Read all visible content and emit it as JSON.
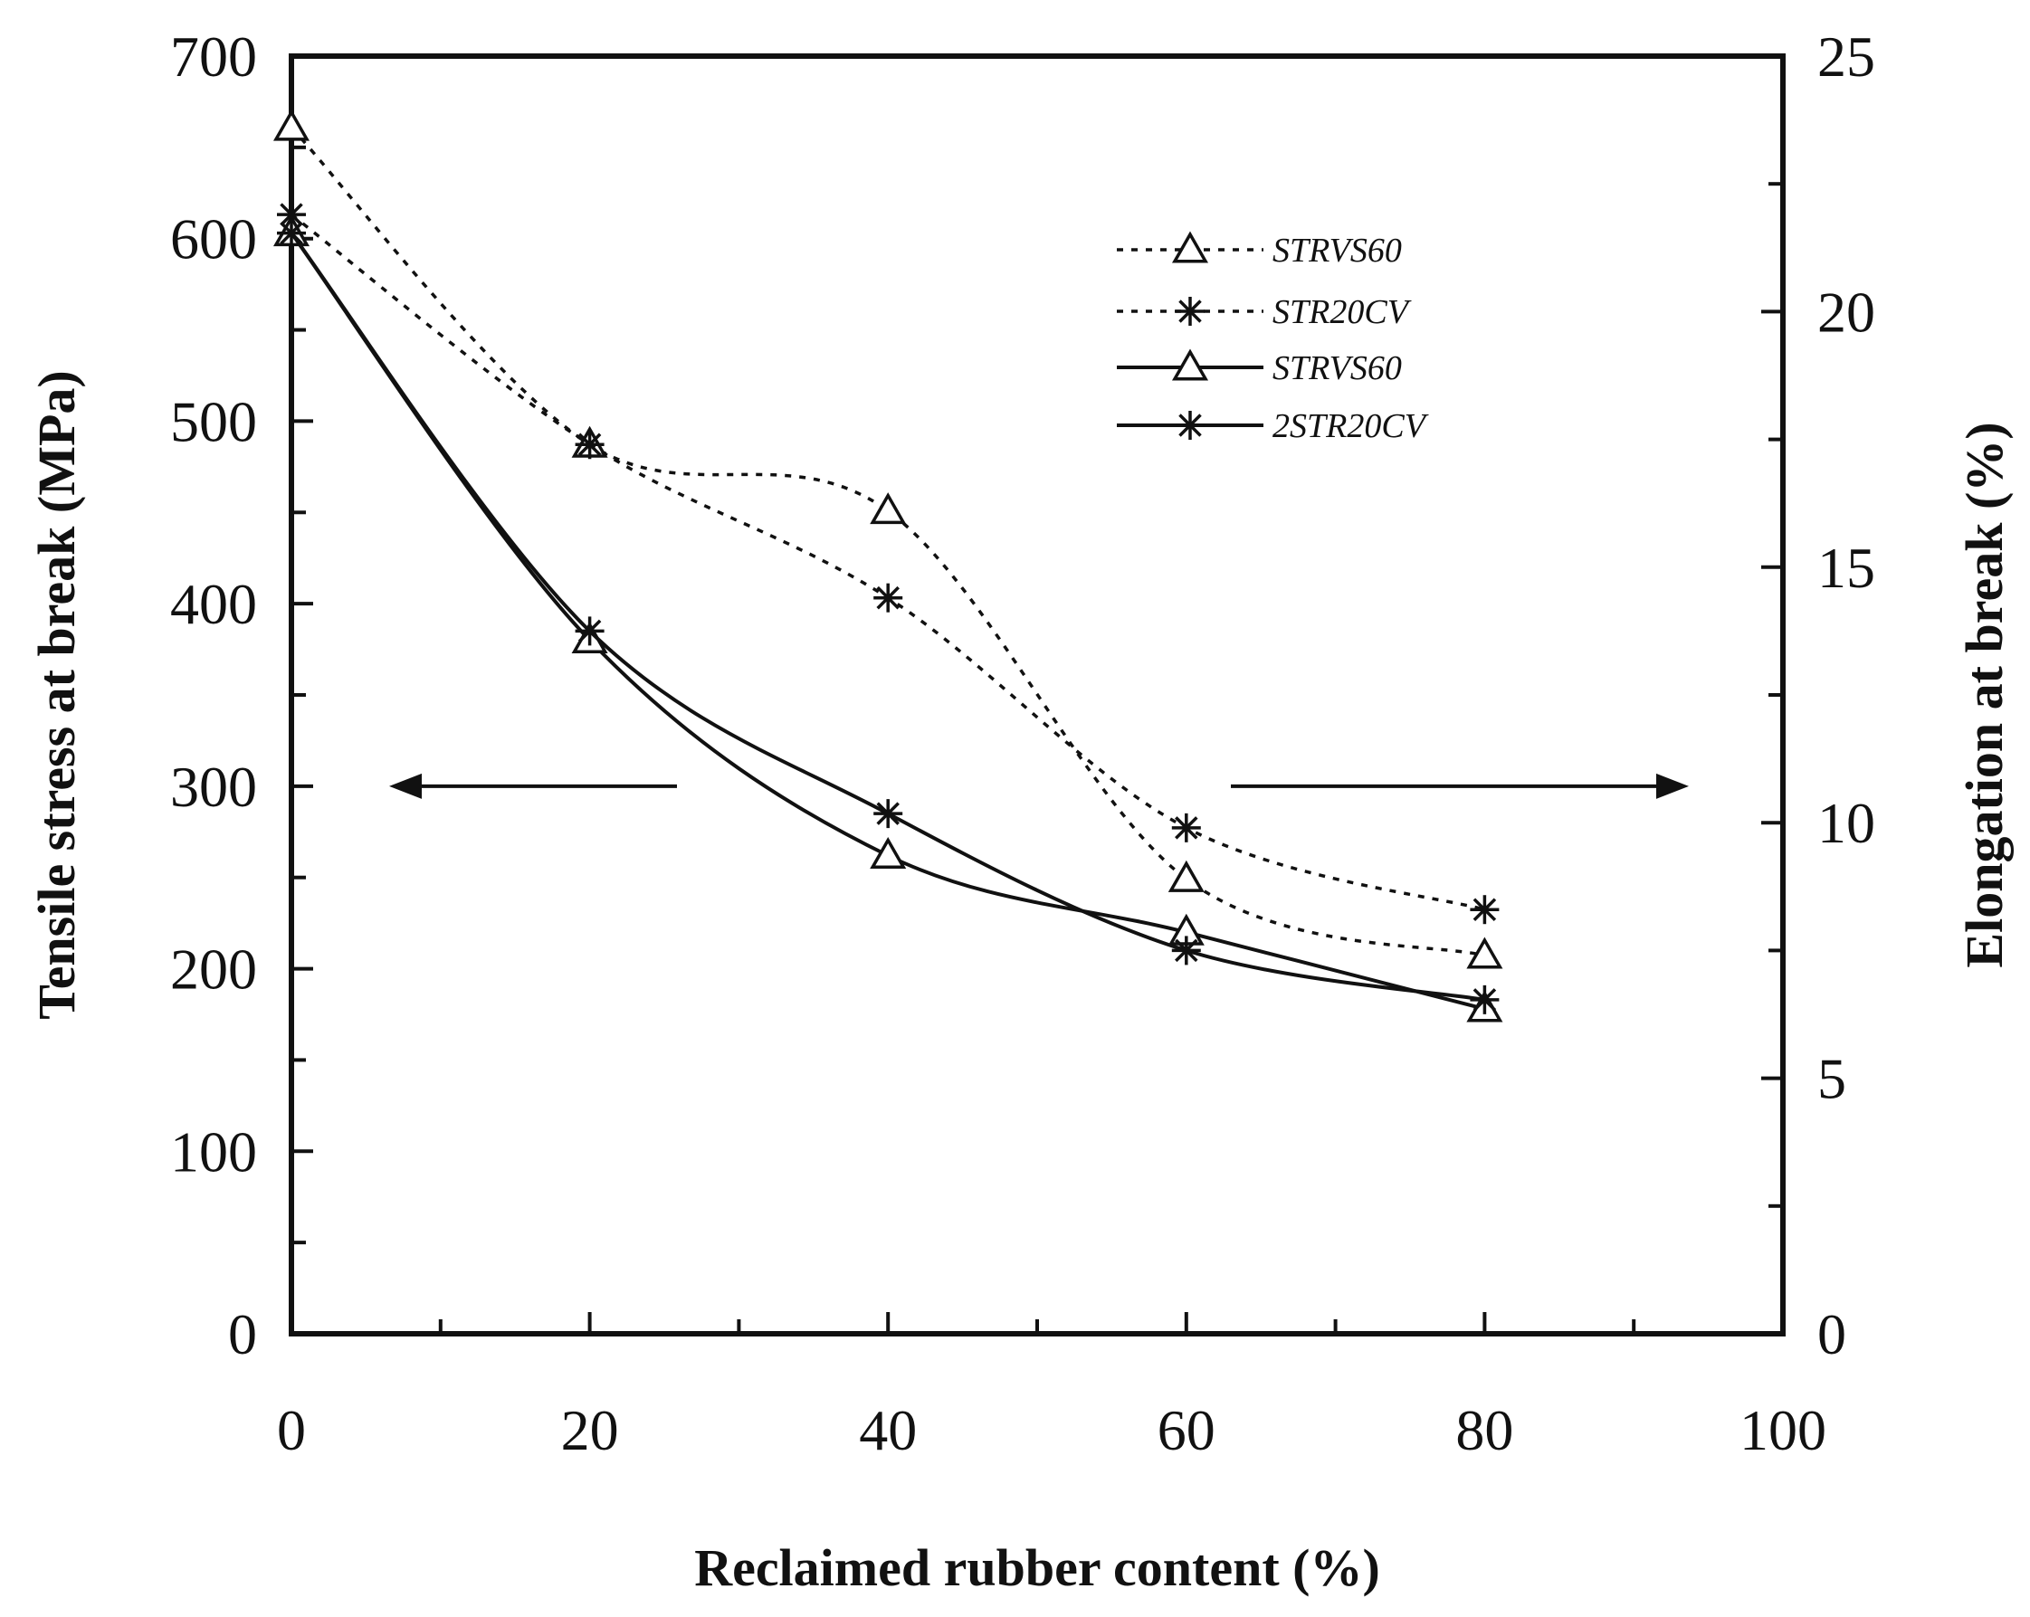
{
  "chart_data": {
    "type": "line",
    "x_axis": {
      "label": "Reclaimed rubber content (%)",
      "range": [
        0,
        100
      ],
      "ticks": [
        0,
        20,
        40,
        60,
        80,
        100
      ],
      "tick_labels": [
        "0",
        "20",
        "40",
        "60",
        "80",
        "100"
      ]
    },
    "y_left_axis": {
      "label": "Tensile stress at break (MPa)",
      "range": [
        0,
        700
      ],
      "ticks": [
        0,
        100,
        200,
        300,
        400,
        500,
        600,
        700
      ],
      "tick_labels": [
        "0",
        "100",
        "200",
        "300",
        "400",
        "500",
        "600",
        "700"
      ]
    },
    "y_right_axis": {
      "label": "Elongation at break (%)",
      "range": [
        0,
        25
      ],
      "ticks": [
        0,
        5,
        10,
        15,
        20,
        25
      ],
      "tick_labels": [
        "0",
        "5",
        "10",
        "15",
        "20",
        "25"
      ]
    },
    "series": [
      {
        "name": "STRVS60",
        "axis": "right",
        "style": "dotted",
        "marker": "triangle",
        "x": [
          0,
          20,
          40,
          60,
          80
        ],
        "y": [
          23.6,
          17.4,
          16.1,
          8.9,
          7.4
        ]
      },
      {
        "name": "STR20CV",
        "axis": "right",
        "style": "dotted",
        "marker": "asterisk",
        "x": [
          0,
          20,
          40,
          60,
          80
        ],
        "y": [
          21.9,
          17.4,
          14.4,
          9.9,
          8.3
        ]
      },
      {
        "name": "STRVS60",
        "axis": "left",
        "style": "solid",
        "marker": "triangle",
        "x": [
          0,
          20,
          40,
          60,
          80
        ],
        "y": [
          603,
          380,
          262,
          220,
          178
        ]
      },
      {
        "name": "2STR20CV",
        "axis": "left",
        "style": "solid",
        "marker": "asterisk",
        "x": [
          0,
          20,
          40,
          60,
          80
        ],
        "y": [
          603,
          385,
          285,
          210,
          183
        ]
      }
    ],
    "legend_position": "top-right",
    "grid": false,
    "annotations": [
      {
        "type": "arrow",
        "direction": "left",
        "refers_to": "left axis"
      },
      {
        "type": "arrow",
        "direction": "right",
        "refers_to": "right axis"
      }
    ]
  }
}
